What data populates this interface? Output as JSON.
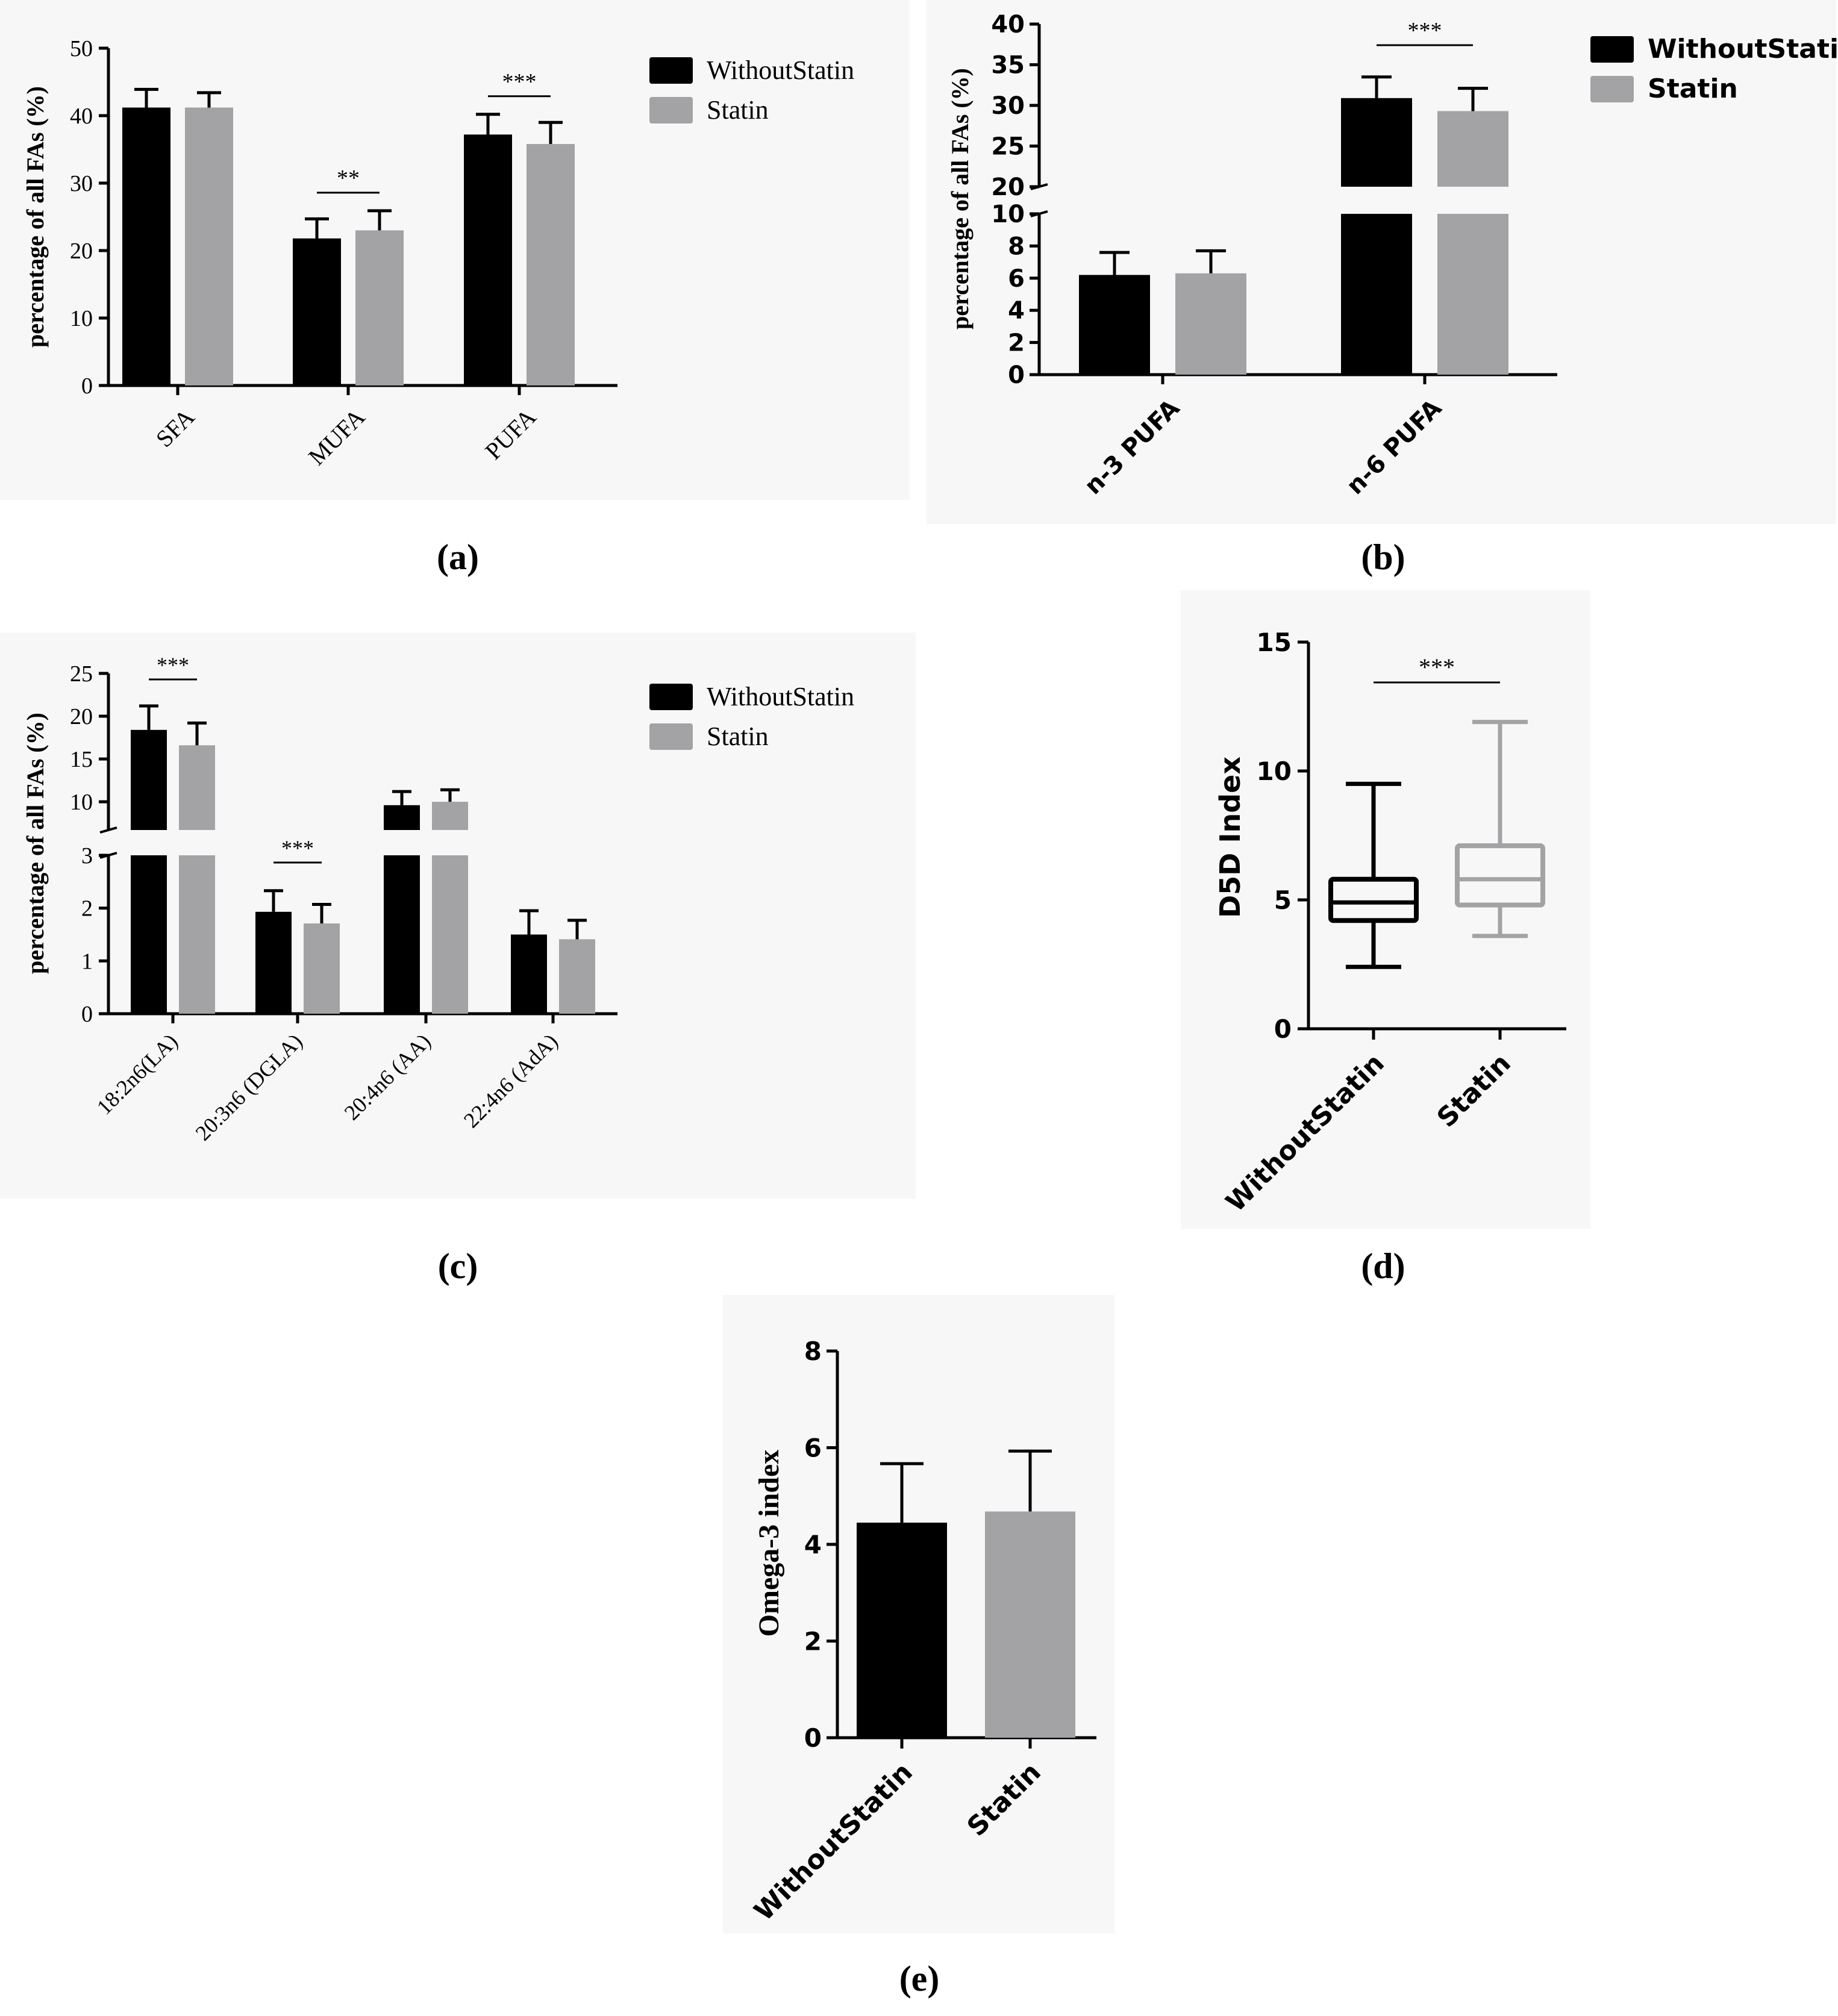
{
  "colors": {
    "without": "#000000",
    "statin": "#a3a3a5",
    "axis": "#000000",
    "panel_bg": "#f7f7f7"
  },
  "chart_data": [
    {
      "panel": "(a)",
      "type": "bar",
      "ylabel": "percentage of all FAs (%)",
      "ylim": [
        0,
        50
      ],
      "yticks": [
        0,
        10,
        20,
        30,
        40,
        50
      ],
      "categories": [
        "SFA",
        "MUFA",
        "PUFA"
      ],
      "series": [
        {
          "name": "WithoutStatin",
          "values": [
            41.2,
            21.8,
            37.2
          ],
          "errors": [
            2.7,
            2.9,
            3.0
          ]
        },
        {
          "name": "Statin",
          "values": [
            41.2,
            23.0,
            35.8
          ],
          "errors": [
            2.2,
            2.9,
            3.2
          ]
        }
      ],
      "significance": [
        {
          "category": "MUFA",
          "label": "**"
        },
        {
          "category": "PUFA",
          "label": "***"
        }
      ],
      "legend": "right",
      "grid": false
    },
    {
      "panel": "(b)",
      "type": "bar",
      "ylabel": "percentage of all FAs (%)",
      "broken_axis": {
        "lower": [
          0,
          10
        ],
        "upper": [
          20,
          40
        ]
      },
      "yticks_lower": [
        0,
        2,
        4,
        6,
        8,
        10
      ],
      "yticks_upper": [
        20,
        25,
        30,
        35,
        40
      ],
      "categories": [
        "n-3 PUFA",
        "n-6 PUFA"
      ],
      "series": [
        {
          "name": "WithoutStatin",
          "values": [
            6.2,
            30.9
          ],
          "errors": [
            1.4,
            2.6
          ]
        },
        {
          "name": "Statin",
          "values": [
            6.3,
            29.3
          ],
          "errors": [
            1.4,
            2.8
          ]
        }
      ],
      "significance": [
        {
          "category": "n-6 PUFA",
          "label": "***"
        }
      ],
      "legend": "right",
      "grid": false
    },
    {
      "panel": "(c)",
      "type": "bar",
      "ylabel": "percentage of all FAs (%)",
      "broken_axis": {
        "lower": [
          0,
          3
        ],
        "upper": [
          6,
          25
        ]
      },
      "yticks_lower": [
        0,
        1,
        2,
        3
      ],
      "yticks_upper": [
        10,
        15,
        20,
        25
      ],
      "categories": [
        "18:2n6(LA)",
        "20:3n6 (DGLA)",
        "20:4n6 (AA)",
        "22:4n6 (AdA)"
      ],
      "series": [
        {
          "name": "WithoutStatin",
          "values": [
            18.4,
            1.93,
            9.6,
            1.5
          ],
          "errors": [
            2.8,
            0.4,
            1.6,
            0.45
          ]
        },
        {
          "name": "Statin",
          "values": [
            16.6,
            1.71,
            10.0,
            1.41
          ],
          "errors": [
            2.6,
            0.36,
            1.4,
            0.36
          ]
        }
      ],
      "significance": [
        {
          "category": "18:2n6(LA)",
          "label": "***"
        },
        {
          "category": "20:3n6 (DGLA)",
          "label": "***"
        }
      ],
      "legend": "right",
      "grid": false
    },
    {
      "panel": "(d)",
      "type": "box",
      "ylabel": "D5D Index",
      "ylim": [
        0,
        15
      ],
      "yticks": [
        0,
        5,
        10,
        15
      ],
      "categories": [
        "WithoutStatin",
        "Statin"
      ],
      "boxes": [
        {
          "min": 2.4,
          "q1": 4.2,
          "median": 4.9,
          "q3": 5.8,
          "max": 9.5
        },
        {
          "min": 3.6,
          "q1": 4.8,
          "median": 5.8,
          "q3": 7.1,
          "max": 11.9
        }
      ],
      "significance": [
        {
          "between": [
            "WithoutStatin",
            "Statin"
          ],
          "label": "***"
        }
      ],
      "grid": false
    },
    {
      "panel": "(e)",
      "type": "bar",
      "ylabel": "Omega-3 index",
      "ylim": [
        0,
        8
      ],
      "yticks": [
        0,
        2,
        4,
        6,
        8
      ],
      "categories": [
        "WithoutStatin",
        "Statin"
      ],
      "values": [
        4.45,
        4.68
      ],
      "errors": [
        1.22,
        1.25
      ],
      "grid": false
    }
  ]
}
